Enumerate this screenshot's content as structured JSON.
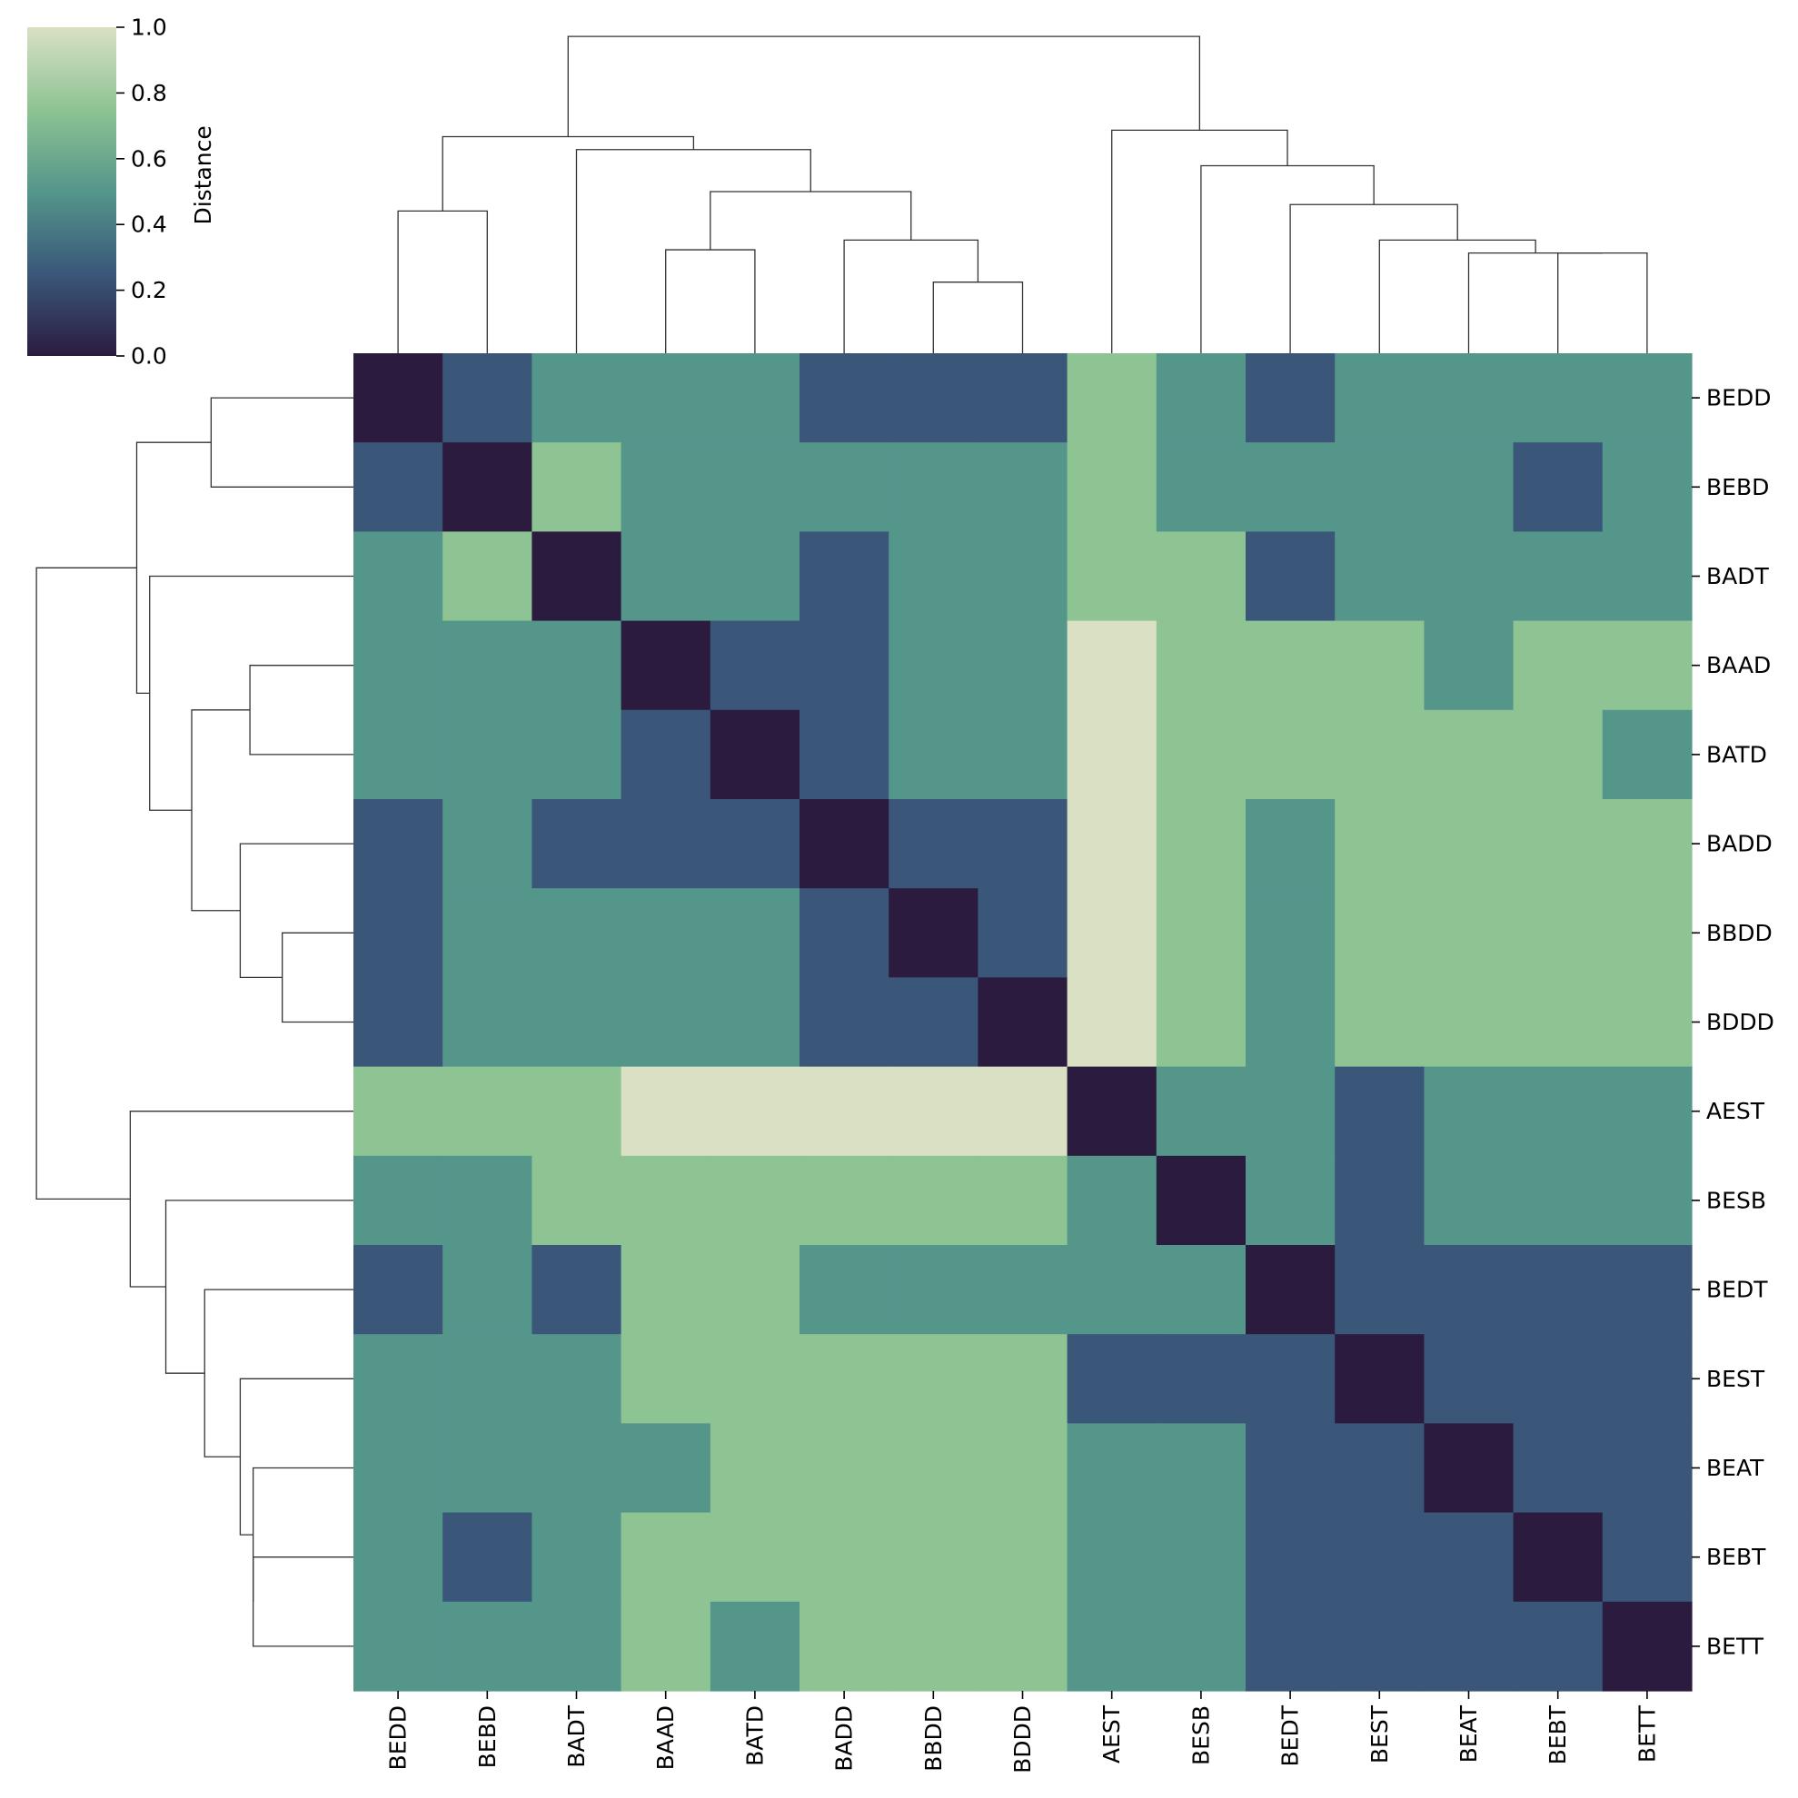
{
  "chart_data": {
    "type": "heatmap",
    "subtype": "clustermap",
    "labels": [
      "BEDD",
      "BEBD",
      "BADT",
      "BAAD",
      "BATD",
      "BADD",
      "BBDD",
      "BDDD",
      "AEST",
      "BESB",
      "BEDT",
      "BEST",
      "BEAT",
      "BEBT",
      "BETT"
    ],
    "x_tick_labels": [
      "BEDD",
      "BEBD",
      "BADT",
      "BAAD",
      "BATD",
      "BADD",
      "BBDD",
      "BDDD",
      "AEST",
      "BESB",
      "BEDT",
      "BEST",
      "BEAT",
      "BEBT",
      "BETT"
    ],
    "y_tick_labels": [
      "BEDD",
      "BEBD",
      "BADT",
      "BAAD",
      "BATD",
      "BADD",
      "BBDD",
      "BDDD",
      "AEST",
      "BESB",
      "BEDT",
      "BEST",
      "BEAT",
      "BEBT",
      "BETT"
    ],
    "matrix": [
      [
        0.0,
        0.25,
        0.5,
        0.5,
        0.5,
        0.25,
        0.25,
        0.25,
        0.75,
        0.5,
        0.25,
        0.5,
        0.5,
        0.5,
        0.5
      ],
      [
        0.25,
        0.0,
        0.75,
        0.5,
        0.5,
        0.5,
        0.5,
        0.5,
        0.75,
        0.5,
        0.5,
        0.5,
        0.5,
        0.25,
        0.5
      ],
      [
        0.5,
        0.75,
        0.0,
        0.5,
        0.5,
        0.25,
        0.5,
        0.5,
        0.75,
        0.75,
        0.25,
        0.5,
        0.5,
        0.5,
        0.5
      ],
      [
        0.5,
        0.5,
        0.5,
        0.0,
        0.25,
        0.25,
        0.5,
        0.5,
        1.0,
        0.75,
        0.75,
        0.75,
        0.5,
        0.75,
        0.75
      ],
      [
        0.5,
        0.5,
        0.5,
        0.25,
        0.0,
        0.25,
        0.5,
        0.5,
        1.0,
        0.75,
        0.75,
        0.75,
        0.75,
        0.75,
        0.5
      ],
      [
        0.25,
        0.5,
        0.25,
        0.25,
        0.25,
        0.0,
        0.25,
        0.25,
        1.0,
        0.75,
        0.5,
        0.75,
        0.75,
        0.75,
        0.75
      ],
      [
        0.25,
        0.5,
        0.5,
        0.5,
        0.5,
        0.25,
        0.0,
        0.25,
        1.0,
        0.75,
        0.5,
        0.75,
        0.75,
        0.75,
        0.75
      ],
      [
        0.25,
        0.5,
        0.5,
        0.5,
        0.5,
        0.25,
        0.25,
        0.0,
        1.0,
        0.75,
        0.5,
        0.75,
        0.75,
        0.75,
        0.75
      ],
      [
        0.75,
        0.75,
        0.75,
        1.0,
        1.0,
        1.0,
        1.0,
        1.0,
        0.0,
        0.5,
        0.5,
        0.25,
        0.5,
        0.5,
        0.5
      ],
      [
        0.5,
        0.5,
        0.75,
        0.75,
        0.75,
        0.75,
        0.75,
        0.75,
        0.5,
        0.0,
        0.5,
        0.25,
        0.5,
        0.5,
        0.5
      ],
      [
        0.25,
        0.5,
        0.25,
        0.75,
        0.75,
        0.5,
        0.5,
        0.5,
        0.5,
        0.5,
        0.0,
        0.25,
        0.25,
        0.25,
        0.25
      ],
      [
        0.5,
        0.5,
        0.5,
        0.75,
        0.75,
        0.75,
        0.75,
        0.75,
        0.25,
        0.25,
        0.25,
        0.0,
        0.25,
        0.25,
        0.25
      ],
      [
        0.5,
        0.5,
        0.5,
        0.5,
        0.75,
        0.75,
        0.75,
        0.75,
        0.5,
        0.5,
        0.25,
        0.25,
        0.0,
        0.25,
        0.25
      ],
      [
        0.5,
        0.25,
        0.5,
        0.75,
        0.75,
        0.75,
        0.75,
        0.75,
        0.5,
        0.5,
        0.25,
        0.25,
        0.25,
        0.0,
        0.25
      ],
      [
        0.5,
        0.5,
        0.5,
        0.75,
        0.5,
        0.75,
        0.75,
        0.75,
        0.5,
        0.5,
        0.25,
        0.25,
        0.25,
        0.25,
        0.0
      ]
    ],
    "colorbar": {
      "label": "Distance",
      "range": [
        0.0,
        1.0
      ],
      "ticks": [
        "0.0",
        "0.2",
        "0.4",
        "0.6",
        "0.8",
        "1.0"
      ],
      "colormap": "cubehelix_light_green",
      "stops": [
        {
          "v": 0.0,
          "c": "#2b1c3f"
        },
        {
          "v": 0.25,
          "c": "#3a577a"
        },
        {
          "v": 0.5,
          "c": "#55968b"
        },
        {
          "v": 0.75,
          "c": "#8ec394"
        },
        {
          "v": 1.0,
          "c": "#d9e0c3"
        }
      ]
    },
    "dendrogram_links": [
      {
        "a": 0,
        "b": 1,
        "height": 0.44
      },
      {
        "a": 3,
        "b": 4,
        "height": 0.32
      },
      {
        "a": 6,
        "b": 7,
        "height": 0.22
      },
      {
        "a": 5,
        "b": "n3",
        "height": 0.35
      },
      {
        "a": "n2",
        "b": "n4",
        "height": 0.5
      },
      {
        "a": 2,
        "b": "n5",
        "height": 0.63
      },
      {
        "a": "n1",
        "b": "n6",
        "height": 0.67
      },
      {
        "a": 13,
        "b": 14,
        "height": 0.31
      },
      {
        "a": 12,
        "b": "n8",
        "height": 0.31
      },
      {
        "a": 11,
        "b": "n9",
        "height": 0.35
      },
      {
        "a": 10,
        "b": "n10",
        "height": 0.46
      },
      {
        "a": 9,
        "b": "n11",
        "height": 0.58
      },
      {
        "a": 8,
        "b": "n12",
        "height": 0.69
      },
      {
        "a": "n7",
        "b": "n13",
        "height": 0.98
      }
    ]
  }
}
